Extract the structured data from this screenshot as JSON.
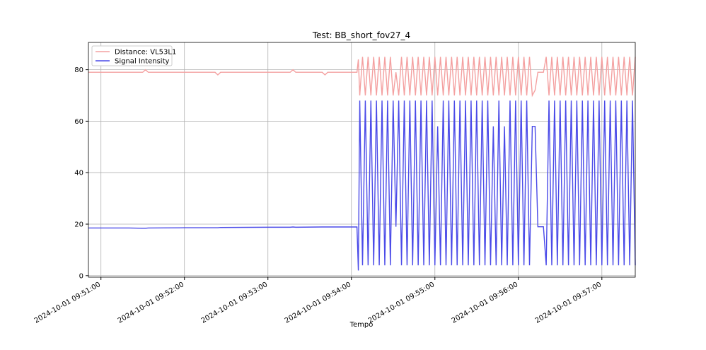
{
  "chart_data": {
    "type": "line",
    "title": "Test: BB_short_fov27_4",
    "xlabel": "Tempo",
    "x": [
      "2024-10-01 09:50:51",
      "2024-10-01 09:51:20",
      "2024-10-01 09:51:30",
      "2024-10-01 09:51:32",
      "2024-10-01 09:51:34",
      "2024-10-01 09:52:00",
      "2024-10-01 09:52:22",
      "2024-10-01 09:52:24",
      "2024-10-01 09:52:26",
      "2024-10-01 09:53:00",
      "2024-10-01 09:53:16",
      "2024-10-01 09:53:18",
      "2024-10-01 09:53:20",
      "2024-10-01 09:53:39",
      "2024-10-01 09:53:41",
      "2024-10-01 09:53:43",
      "2024-10-01 09:54:04",
      "2024-10-01 09:54:05",
      "2024-10-01 09:54:06",
      "2024-10-01 09:54:08",
      "2024-10-01 09:54:10",
      "2024-10-01 09:54:12",
      "2024-10-01 09:54:14",
      "2024-10-01 09:54:16",
      "2024-10-01 09:54:18",
      "2024-10-01 09:54:20",
      "2024-10-01 09:54:22",
      "2024-10-01 09:54:24",
      "2024-10-01 09:54:26",
      "2024-10-01 09:54:28",
      "2024-10-01 09:54:30",
      "2024-10-01 09:54:32",
      "2024-10-01 09:54:34",
      "2024-10-01 09:54:36",
      "2024-10-01 09:54:38",
      "2024-10-01 09:54:40",
      "2024-10-01 09:54:42",
      "2024-10-01 09:54:44",
      "2024-10-01 09:54:46",
      "2024-10-01 09:54:48",
      "2024-10-01 09:54:50",
      "2024-10-01 09:54:52",
      "2024-10-01 09:54:54",
      "2024-10-01 09:54:56",
      "2024-10-01 09:54:58",
      "2024-10-01 09:55:00",
      "2024-10-01 09:55:02",
      "2024-10-01 09:55:04",
      "2024-10-01 09:55:06",
      "2024-10-01 09:55:08",
      "2024-10-01 09:55:10",
      "2024-10-01 09:55:12",
      "2024-10-01 09:55:14",
      "2024-10-01 09:55:16",
      "2024-10-01 09:55:18",
      "2024-10-01 09:55:20",
      "2024-10-01 09:55:22",
      "2024-10-01 09:55:24",
      "2024-10-01 09:55:26",
      "2024-10-01 09:55:28",
      "2024-10-01 09:55:30",
      "2024-10-01 09:55:32",
      "2024-10-01 09:55:34",
      "2024-10-01 09:55:36",
      "2024-10-01 09:55:38",
      "2024-10-01 09:55:40",
      "2024-10-01 09:55:42",
      "2024-10-01 09:55:44",
      "2024-10-01 09:55:46",
      "2024-10-01 09:55:48",
      "2024-10-01 09:55:50",
      "2024-10-01 09:55:52",
      "2024-10-01 09:55:54",
      "2024-10-01 09:55:56",
      "2024-10-01 09:55:58",
      "2024-10-01 09:56:00",
      "2024-10-01 09:56:02",
      "2024-10-01 09:56:04",
      "2024-10-01 09:56:06",
      "2024-10-01 09:56:08",
      "2024-10-01 09:56:10",
      "2024-10-01 09:56:12",
      "2024-10-01 09:56:14",
      "2024-10-01 09:56:16",
      "2024-10-01 09:56:18",
      "2024-10-01 09:56:20",
      "2024-10-01 09:56:22",
      "2024-10-01 09:56:24",
      "2024-10-01 09:56:26",
      "2024-10-01 09:56:28",
      "2024-10-01 09:56:30",
      "2024-10-01 09:56:32",
      "2024-10-01 09:56:34",
      "2024-10-01 09:56:36",
      "2024-10-01 09:56:38",
      "2024-10-01 09:56:40",
      "2024-10-01 09:56:42",
      "2024-10-01 09:56:44",
      "2024-10-01 09:56:46",
      "2024-10-01 09:56:48",
      "2024-10-01 09:56:50",
      "2024-10-01 09:56:52",
      "2024-10-01 09:56:54",
      "2024-10-01 09:56:56",
      "2024-10-01 09:56:58",
      "2024-10-01 09:57:00",
      "2024-10-01 09:57:02",
      "2024-10-01 09:57:04",
      "2024-10-01 09:57:06",
      "2024-10-01 09:57:08",
      "2024-10-01 09:57:10",
      "2024-10-01 09:57:12",
      "2024-10-01 09:57:14",
      "2024-10-01 09:57:16",
      "2024-10-01 09:57:18",
      "2024-10-01 09:57:20",
      "2024-10-01 09:57:22",
      "2024-10-01 09:57:24"
    ],
    "series": [
      {
        "name": "Distance: VL53L1",
        "color": "#f4a0a0",
        "values": [
          79,
          79,
          79,
          80,
          79,
          79,
          79,
          78,
          79,
          79,
          79,
          80,
          79,
          79,
          78,
          79,
          79,
          84,
          70,
          85,
          70,
          85,
          70,
          85,
          70,
          85,
          70,
          85,
          70,
          85,
          70,
          79,
          70,
          85,
          70,
          85,
          70,
          85,
          70,
          85,
          70,
          85,
          70,
          85,
          70,
          85,
          70,
          85,
          70,
          85,
          70,
          85,
          70,
          85,
          70,
          85,
          70,
          85,
          70,
          85,
          70,
          85,
          70,
          85,
          70,
          85,
          70,
          85,
          70,
          85,
          70,
          85,
          70,
          85,
          70,
          85,
          70,
          85,
          70,
          85,
          70,
          72,
          79,
          79,
          79,
          85,
          70,
          85,
          70,
          85,
          70,
          85,
          70,
          85,
          70,
          85,
          70,
          85,
          70,
          85,
          70,
          85,
          70,
          85,
          70,
          85,
          70,
          85,
          70,
          85,
          70,
          85,
          70,
          85,
          70,
          85,
          70,
          85
        ]
      },
      {
        "name": "Signal Intensity",
        "color": "#4a4ae8",
        "values": [
          18.5,
          18.5,
          18.4,
          18.4,
          18.5,
          18.6,
          18.6,
          18.6,
          18.7,
          18.8,
          18.8,
          18.9,
          18.8,
          18.9,
          18.9,
          18.9,
          18.9,
          2,
          68,
          4,
          68,
          4,
          68,
          4,
          68,
          4,
          68,
          4,
          68,
          4,
          68,
          19,
          68,
          4,
          68,
          4,
          68,
          4,
          68,
          4,
          68,
          4,
          68,
          4,
          68,
          4,
          58,
          4,
          68,
          4,
          68,
          4,
          68,
          4,
          68,
          4,
          68,
          4,
          68,
          4,
          68,
          4,
          68,
          4,
          68,
          4,
          58,
          4,
          68,
          4,
          58,
          4,
          68,
          4,
          68,
          4,
          68,
          4,
          68,
          4,
          58,
          58,
          19,
          19,
          19,
          4,
          68,
          4,
          68,
          4,
          68,
          4,
          68,
          4,
          68,
          4,
          68,
          4,
          68,
          4,
          68,
          4,
          68,
          4,
          68,
          4,
          68,
          4,
          68,
          4,
          68,
          4,
          68,
          4,
          68,
          4,
          68,
          4
        ]
      }
    ],
    "xlim": [
      "2024-10-01 09:50:51",
      "2024-10-01 09:57:24"
    ],
    "xticks": [
      "2024-10-01 09:51:00",
      "2024-10-01 09:52:00",
      "2024-10-01 09:53:00",
      "2024-10-01 09:54:00",
      "2024-10-01 09:55:00",
      "2024-10-01 09:56:00",
      "2024-10-01 09:57:00"
    ],
    "ylim": [
      -0.6,
      90.6
    ],
    "yticks": [
      0,
      20,
      40,
      60,
      80
    ],
    "grid": true,
    "legend": "upper left"
  }
}
